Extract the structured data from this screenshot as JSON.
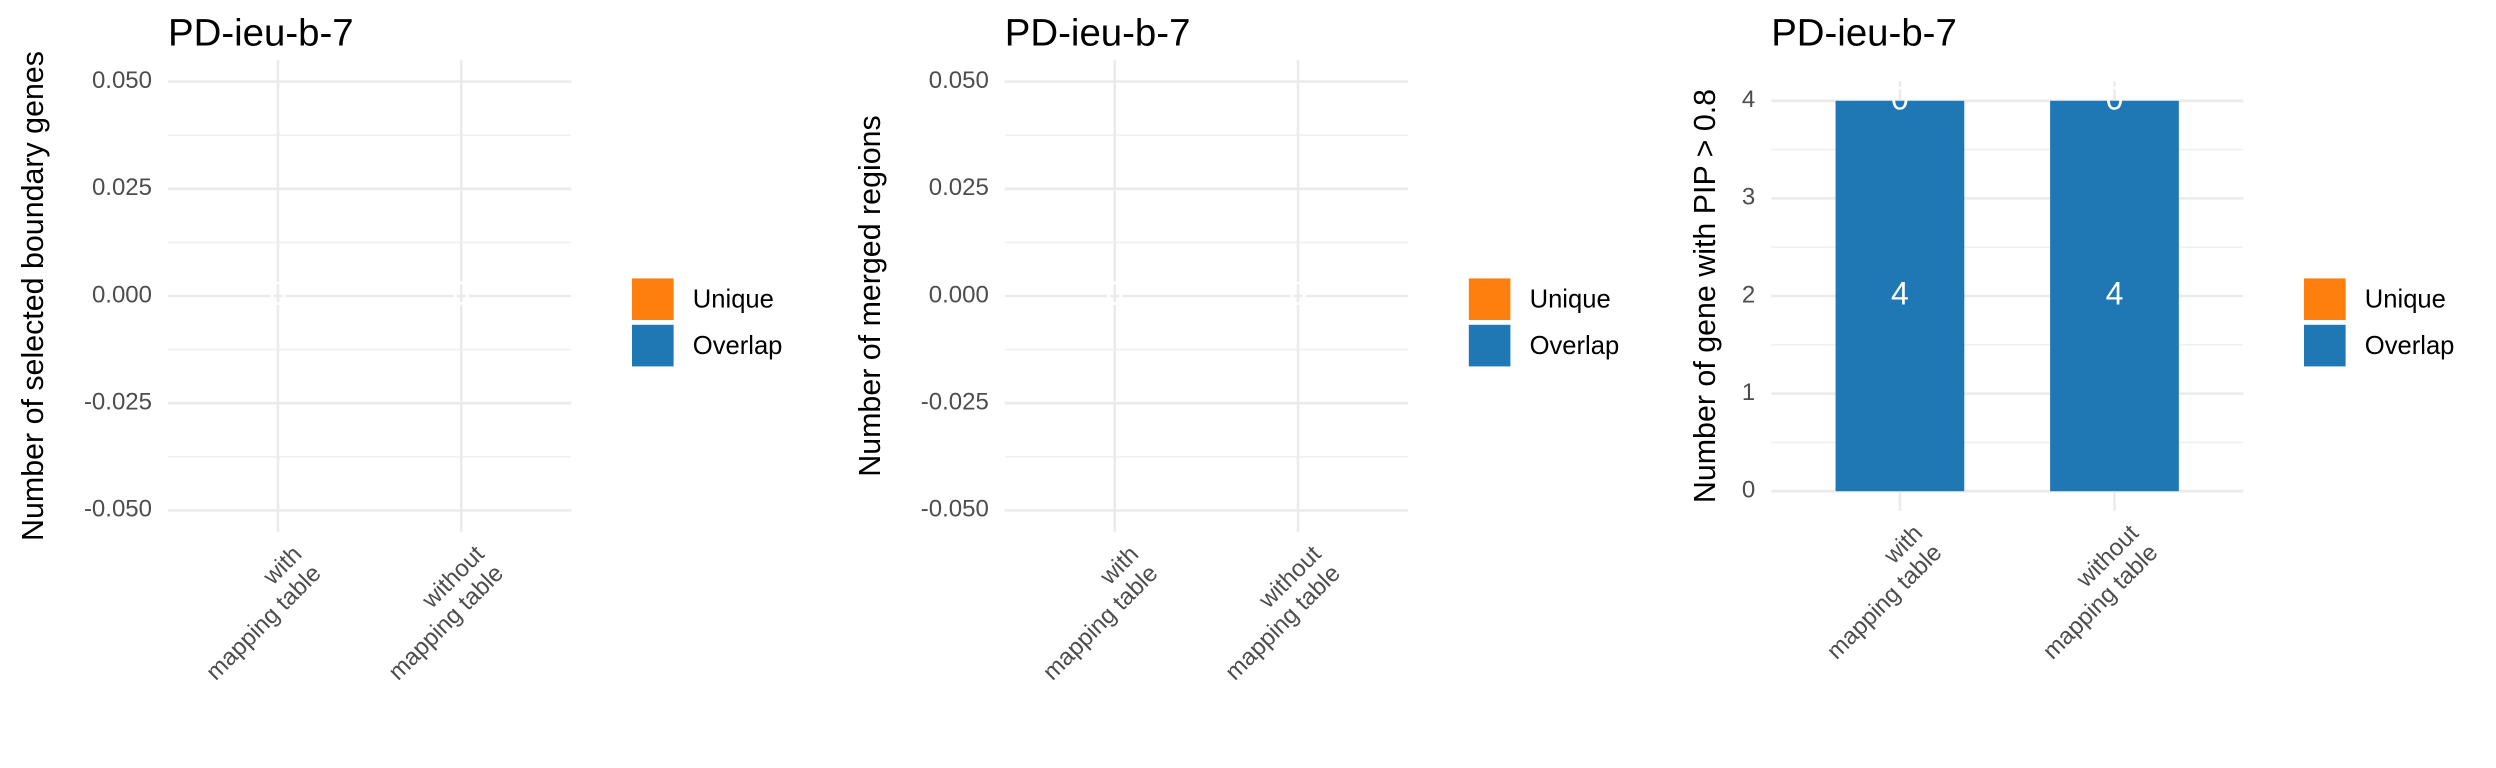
{
  "chart_data": [
    {
      "type": "bar",
      "stacked": true,
      "title": "PD-ieu-b-7",
      "y_label": "Number of selected boundary genes",
      "categories": [
        "with\nmapping table",
        "without\nmapping table"
      ],
      "series": [
        {
          "name": "Unique",
          "color": "#ff7f0e",
          "values": [
            0,
            0
          ]
        },
        {
          "name": "Overlap",
          "color": "#1f77b4",
          "values": [
            0,
            0
          ]
        }
      ],
      "ylim": [
        -0.055,
        0.055
      ],
      "yticks": [
        {
          "value": -0.05,
          "label": "-0.050"
        },
        {
          "value": -0.025,
          "label": "-0.025"
        },
        {
          "value": 0,
          "label": "0.000"
        },
        {
          "value": 0.025,
          "label": "0.025"
        },
        {
          "value": 0.05,
          "label": "0.050"
        }
      ],
      "grid": true,
      "legend": "right"
    },
    {
      "type": "bar",
      "stacked": true,
      "title": "PD-ieu-b-7",
      "y_label": "Number of merged regions",
      "categories": [
        "with\nmapping table",
        "without\nmapping table"
      ],
      "series": [
        {
          "name": "Unique",
          "color": "#ff7f0e",
          "values": [
            0,
            0
          ]
        },
        {
          "name": "Overlap",
          "color": "#1f77b4",
          "values": [
            0,
            0
          ]
        }
      ],
      "ylim": [
        -0.055,
        0.055
      ],
      "yticks": [
        {
          "value": -0.05,
          "label": "-0.050"
        },
        {
          "value": -0.025,
          "label": "-0.025"
        },
        {
          "value": 0,
          "label": "0.000"
        },
        {
          "value": 0.025,
          "label": "0.025"
        },
        {
          "value": 0.05,
          "label": "0.050"
        }
      ],
      "grid": true,
      "legend": "right"
    },
    {
      "type": "bar",
      "stacked": true,
      "title": "PD-ieu-b-7",
      "y_label": "Number of gene with PIP > 0.8",
      "categories": [
        "with\nmapping table",
        "without\nmapping table"
      ],
      "series": [
        {
          "name": "Unique",
          "color": "#ff7f0e",
          "values": [
            0,
            0
          ]
        },
        {
          "name": "Overlap",
          "color": "#1f77b4",
          "values": [
            4,
            4
          ]
        }
      ],
      "ylim": [
        -0.2,
        4.2
      ],
      "yticks": [
        0,
        1,
        2,
        3,
        4
      ],
      "grid": true,
      "legend": "right"
    }
  ]
}
